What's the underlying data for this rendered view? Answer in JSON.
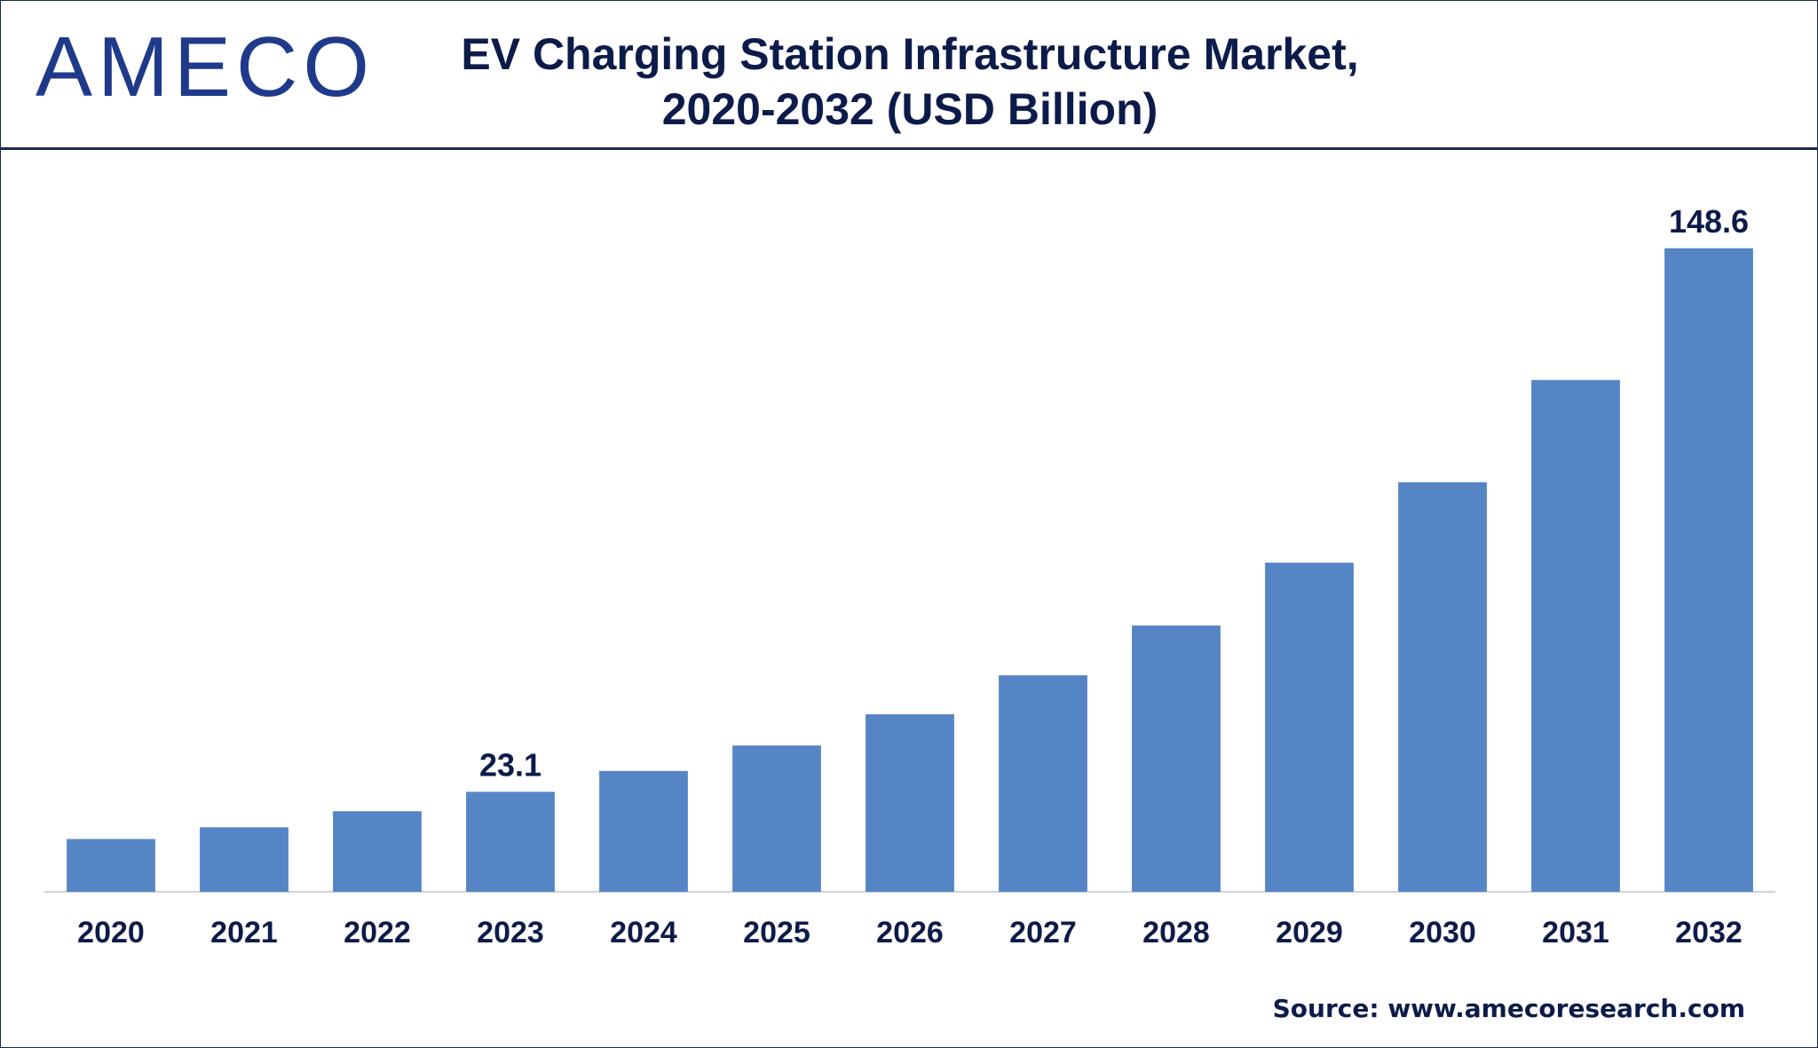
{
  "header": {
    "logo_text": "AMECO",
    "title_line1": "EV Charging Station Infrastructure Market,",
    "title_line2": "2020-2032 (USD Billion)"
  },
  "footer": {
    "source": "Source: www.amecoresearch.com"
  },
  "colors": {
    "bar": "#5585c5",
    "text": "#0d1b4a",
    "logo": "#1f3a8a",
    "axis": "#d0d4da"
  },
  "chart_data": {
    "type": "bar",
    "title": "EV Charging Station Infrastructure Market, 2020-2032 (USD Billion)",
    "categories": [
      "2020",
      "2021",
      "2022",
      "2023",
      "2024",
      "2025",
      "2026",
      "2027",
      "2028",
      "2029",
      "2030",
      "2031",
      "2032"
    ],
    "values": [
      12.2,
      14.9,
      18.6,
      23.1,
      27.9,
      33.8,
      41.0,
      50.0,
      61.5,
      76.0,
      94.6,
      118.2,
      148.6
    ],
    "data_labels": [
      {
        "index": 3,
        "text": "23.1"
      },
      {
        "index": 12,
        "text": "148.6"
      }
    ],
    "xlabel": "",
    "ylabel": "",
    "ylim": [
      0,
      160
    ],
    "grid": false,
    "legend": "none"
  }
}
